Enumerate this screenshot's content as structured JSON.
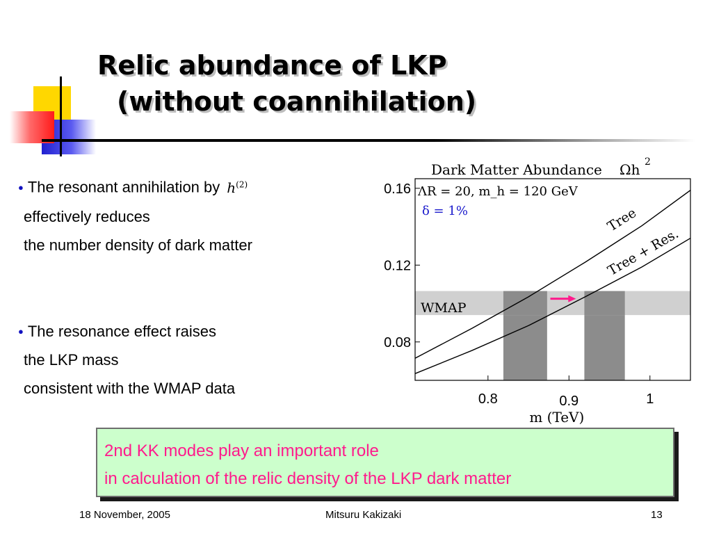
{
  "title": {
    "line1": "Relic abundance of LKP",
    "line2": "(without coannihilation)"
  },
  "bullets": [
    {
      "lines": [
        "The resonant annihilation by",
        "effectively reduces",
        "the number density of dark matter"
      ],
      "math": "h",
      "math_sup": "(2)"
    },
    {
      "lines": [
        "The resonance effect raises",
        "the LKP mass",
        "consistent with the WMAP data"
      ]
    }
  ],
  "chart_data": {
    "type": "line",
    "title": "Dark Matter Abundance",
    "title_symbol": "Ωh",
    "title_sup": "2",
    "annotation_line1": "ΛR = 20,  m_h = 120 GeV",
    "annotation_line2": "δ = 1%",
    "xlabel": "m (TeV)",
    "xlim": [
      0.71,
      1.05
    ],
    "ylim": [
      0.06,
      0.165
    ],
    "xticks": [
      0.8,
      0.9,
      1
    ],
    "xtick_labels": [
      "0.8",
      "0.9",
      "1"
    ],
    "yticks": [
      0.08,
      0.12,
      0.16
    ],
    "ytick_labels": [
      "0.08",
      "0.12",
      "0.16"
    ],
    "series": [
      {
        "name": "Tree",
        "x": [
          0.71,
          0.78,
          0.85,
          0.92,
          0.99,
          1.05
        ],
        "y": [
          0.0715,
          0.087,
          0.1035,
          0.1215,
          0.1405,
          0.159
        ]
      },
      {
        "name": "Tree + Res.",
        "x": [
          0.71,
          0.78,
          0.85,
          0.92,
          0.99,
          1.05
        ],
        "y": [
          0.0635,
          0.0755,
          0.0885,
          0.1035,
          0.119,
          0.134
        ]
      }
    ],
    "wmap_band": {
      "label": "WMAP",
      "y": [
        0.094,
        0.1065
      ]
    },
    "mass_bands": [
      [
        0.819,
        0.873
      ],
      [
        0.919,
        0.969
      ]
    ],
    "arrow_color": "#ff1a8c",
    "annotation_color": "#1a1acc"
  },
  "callout": {
    "line1": "2nd KK modes play an important role",
    "line2": "in calculation of the relic density of the LKP dark matter",
    "text_color": "#ff1a8c",
    "bg_color": "#ccffcc"
  },
  "footer": {
    "date": "18 November, 2005",
    "author": "Mitsuru Kakizaki",
    "page": "13"
  }
}
